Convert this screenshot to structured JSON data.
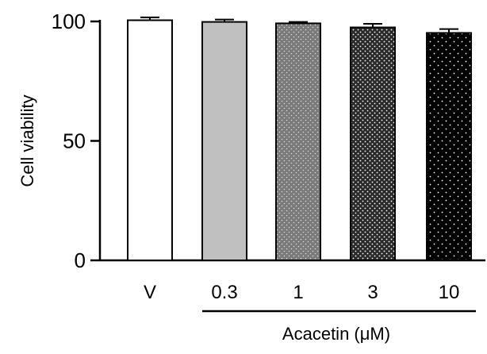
{
  "chart_data": {
    "type": "bar",
    "categories": [
      "V",
      "0.3",
      "1",
      "3",
      "10"
    ],
    "values": [
      100.5,
      99.8,
      99.2,
      97.5,
      95.2
    ],
    "errors": [
      1.2,
      1.0,
      0.6,
      1.5,
      1.6
    ],
    "fills": [
      "white",
      "light-gray",
      "gray-dotted",
      "dark-dotted",
      "black-dotted"
    ],
    "ylabel": "Cell viability",
    "xgroup_label": "Acacetin (μM)",
    "ylim": [
      0,
      100
    ],
    "yticks": [
      "0",
      "50",
      "100"
    ],
    "grid": false,
    "legend": "none"
  }
}
